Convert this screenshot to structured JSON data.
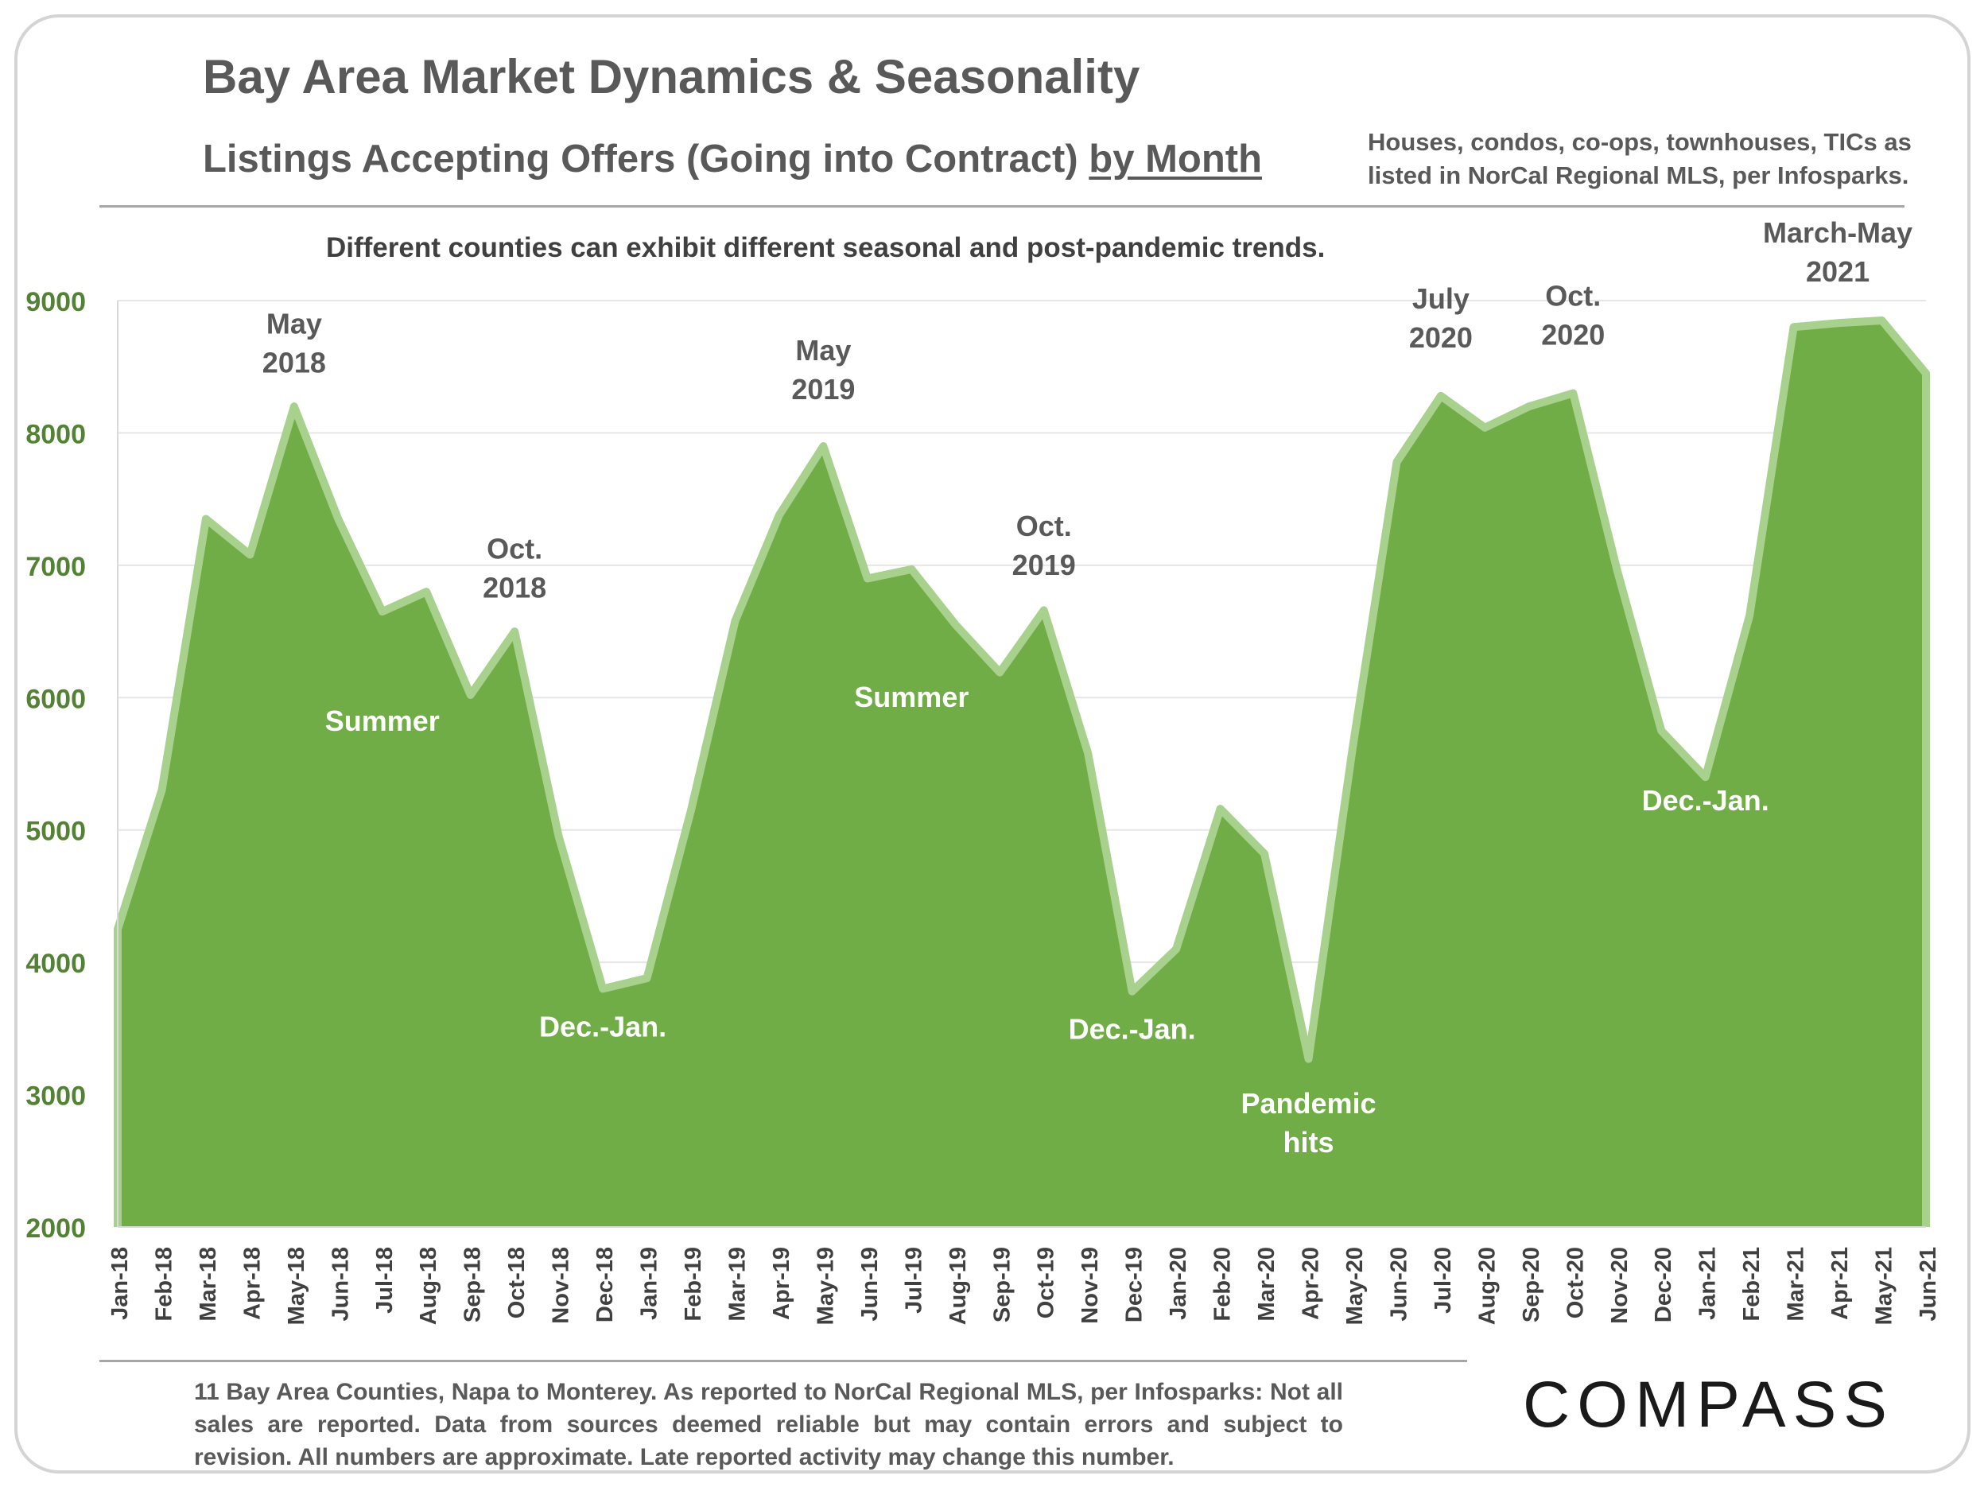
{
  "header": {
    "title": "Bay Area Market Dynamics & Seasonality",
    "subtitle_main": "Listings Accepting Offers (Going into Contract) ",
    "subtitle_emphasis": "by Month",
    "scope_note": "Houses, condos, co-ops, townhouses, TICs as listed in NorCal Regional MLS, per Infosparks."
  },
  "tagline": "Different counties can exhibit different seasonal and post-pandemic trends.",
  "footnote": "11 Bay Area Counties, Napa to Monterey. As reported to NorCal Regional MLS, per Infosparks: Not all sales are reported. Data from sources deemed reliable but may contain errors and subject to revision.  All numbers are approximate. Late reported activity may change this number.",
  "brand": {
    "logo_text": "COMPASS"
  },
  "colors": {
    "fill": "#70ad47",
    "line": "#a9d18e",
    "axis_text": "#548235",
    "dark_label": "#595959",
    "light_label": "#ffffff"
  },
  "chart_data": {
    "type": "area",
    "ylim": [
      2000,
      9000
    ],
    "yticks": [
      2000,
      3000,
      4000,
      5000,
      6000,
      7000,
      8000,
      9000
    ],
    "grid": true,
    "categories": [
      "Jan-18",
      "Feb-18",
      "Mar-18",
      "Apr-18",
      "May-18",
      "Jun-18",
      "Jul-18",
      "Aug-18",
      "Sep-18",
      "Oct-18",
      "Nov-18",
      "Dec-18",
      "Jan-19",
      "Feb-19",
      "Mar-19",
      "Apr-19",
      "May-19",
      "Jun-19",
      "Jul-19",
      "Aug-19",
      "Sep-19",
      "Oct-19",
      "Nov-19",
      "Dec-19",
      "Jan-20",
      "Feb-20",
      "Mar-20",
      "Apr-20",
      "May-20",
      "Jun-20",
      "Jul-20",
      "Aug-20",
      "Sep-20",
      "Oct-20",
      "Nov-20",
      "Dec-20",
      "Jan-21",
      "Feb-21",
      "Mar-21",
      "Apr-21",
      "May-21",
      "Jun-21"
    ],
    "values": [
      4250,
      5300,
      7350,
      7080,
      8200,
      7350,
      6650,
      6800,
      6020,
      6500,
      4950,
      3800,
      3880,
      5150,
      6580,
      7380,
      7900,
      6900,
      6970,
      6550,
      6190,
      6660,
      5580,
      3780,
      4100,
      5160,
      4820,
      3270,
      5620,
      7780,
      8280,
      8040,
      8200,
      8300,
      6960,
      5750,
      5400,
      6620,
      8800,
      8830,
      8850,
      8450
    ],
    "annotations": [
      {
        "text": [
          "May",
          "2018"
        ],
        "at": "May-18",
        "value": 8750,
        "style": "dark"
      },
      {
        "text": [
          "Oct.",
          "2018"
        ],
        "at": "Oct-18",
        "value": 7050,
        "style": "dark"
      },
      {
        "text": [
          "Summer"
        ],
        "at": "Jul-18",
        "value": 5750,
        "style": "light"
      },
      {
        "text": [
          "Dec.-Jan."
        ],
        "at": "Dec-18",
        "value": 3440,
        "style": "light"
      },
      {
        "text": [
          "May",
          "2019"
        ],
        "at": "May-19",
        "value": 8550,
        "style": "dark"
      },
      {
        "text": [
          "Summer"
        ],
        "at": "Jul-19",
        "value": 5930,
        "style": "light"
      },
      {
        "text": [
          "Oct.",
          "2019"
        ],
        "at": "Oct-19",
        "value": 7220,
        "style": "dark"
      },
      {
        "text": [
          "Dec.-Jan."
        ],
        "at": "Dec-19",
        "value": 3420,
        "style": "light"
      },
      {
        "text": [
          "Pandemic",
          "hits"
        ],
        "at": "Apr-20",
        "value": 2860,
        "style": "light"
      },
      {
        "text": [
          "July",
          "2020"
        ],
        "at": "Jul-20",
        "value": 8940,
        "style": "dark"
      },
      {
        "text": [
          "Oct.",
          "2020"
        ],
        "at": "Oct-20",
        "value": 8960,
        "style": "dark"
      },
      {
        "text": [
          "Dec.-Jan."
        ],
        "at": "Jan-21",
        "value": 5150,
        "style": "light"
      },
      {
        "text": [
          "March-May",
          "2021"
        ],
        "at": "Apr-21",
        "value": 9440,
        "style": "dark"
      }
    ]
  }
}
